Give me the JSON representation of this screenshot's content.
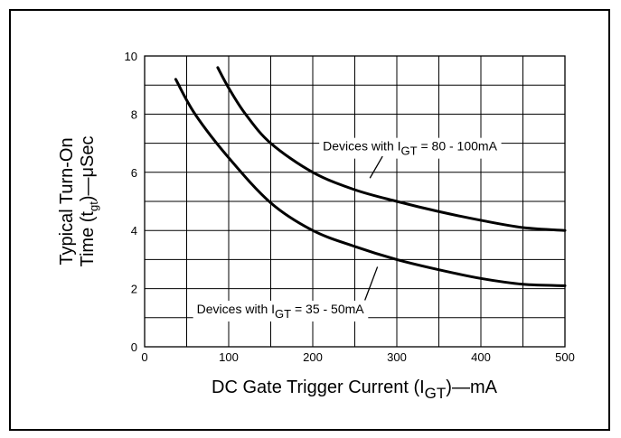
{
  "chart_data": {
    "type": "line",
    "xlabel": "DC Gate Trigger Current (I",
    "xlabel_sub": "GT",
    "xlabel_tail": ")—mA",
    "ylabel_line1": "Typical Turn-On",
    "ylabel_line2_pre": "Time (t",
    "ylabel_line2_sub": "gt",
    "ylabel_line2_tail": ")—μSec",
    "xlim": [
      0,
      500
    ],
    "ylim": [
      0,
      10
    ],
    "x_ticks": [
      "0",
      "100",
      "200",
      "300",
      "400",
      "500"
    ],
    "y_ticks": [
      "0",
      "2",
      "4",
      "6",
      "8",
      "10"
    ],
    "grid": true,
    "series": [
      {
        "name": "Devices with IGT = 80 - 100mA",
        "x": [
          87,
          100,
          120,
          150,
          200,
          250,
          300,
          350,
          400,
          450,
          500
        ],
        "y": [
          9.6,
          8.9,
          8.0,
          7.0,
          6.0,
          5.4,
          5.0,
          4.65,
          4.35,
          4.1,
          4.0
        ]
      },
      {
        "name": "Devices with IGT = 35 - 50mA",
        "x": [
          37,
          60,
          100,
          150,
          200,
          250,
          300,
          350,
          400,
          450,
          500
        ],
        "y": [
          9.2,
          8.0,
          6.5,
          4.95,
          4.0,
          3.45,
          3.0,
          2.65,
          2.35,
          2.15,
          2.1
        ]
      }
    ],
    "annotations": [
      {
        "pre": "Devices with I",
        "sub": "GT",
        "post": " = 80 - 100mA",
        "series": 0
      },
      {
        "pre": "Devices with I",
        "sub": "GT",
        "post": " = 35  - 50mA",
        "series": 1
      }
    ]
  }
}
